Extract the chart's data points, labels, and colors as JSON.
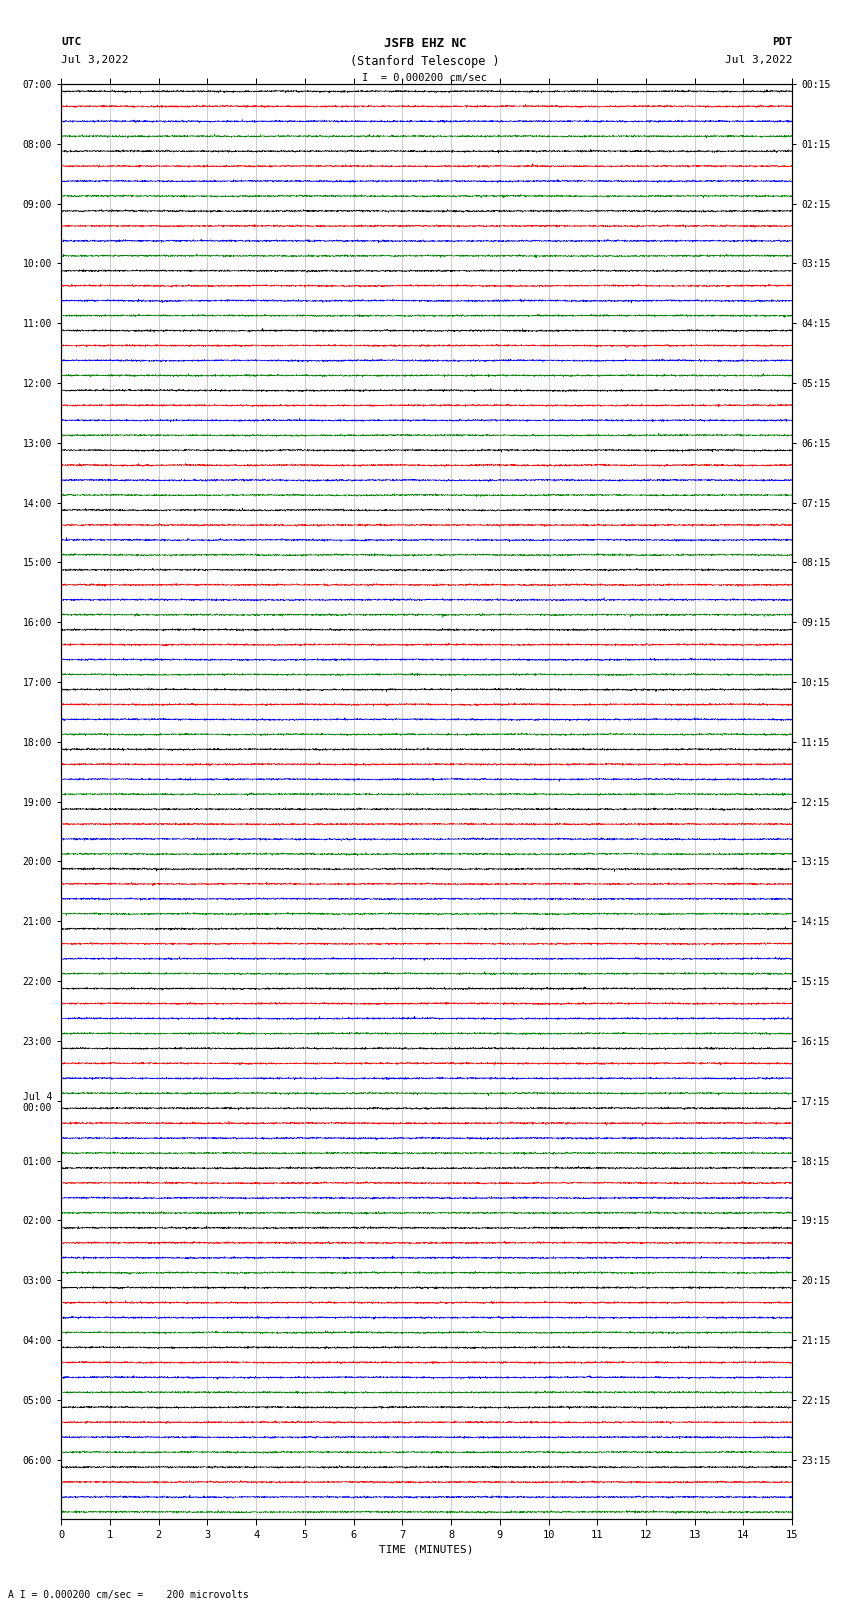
{
  "title_line1": "JSFB EHZ NC",
  "title_line2": "(Stanford Telescope )",
  "title_line3": "I  = 0.000200 cm/sec",
  "left_label_line1": "UTC",
  "left_label_line2": "Jul 3,2022",
  "right_label_line1": "PDT",
  "right_label_line2": "Jul 3,2022",
  "xlabel": "TIME (MINUTES)",
  "bottom_label": "A I = 0.000200 cm/sec =    200 microvolts",
  "utc_times": [
    "07:00",
    "08:00",
    "09:00",
    "10:00",
    "11:00",
    "12:00",
    "13:00",
    "14:00",
    "15:00",
    "16:00",
    "17:00",
    "18:00",
    "19:00",
    "20:00",
    "21:00",
    "22:00",
    "23:00",
    "Jul 4\n00:00",
    "01:00",
    "02:00",
    "03:00",
    "04:00",
    "05:00",
    "06:00"
  ],
  "pdt_times": [
    "00:15",
    "01:15",
    "02:15",
    "03:15",
    "04:15",
    "05:15",
    "06:15",
    "07:15",
    "08:15",
    "09:15",
    "10:15",
    "11:15",
    "12:15",
    "13:15",
    "14:15",
    "15:15",
    "16:15",
    "17:15",
    "18:15",
    "19:15",
    "20:15",
    "21:15",
    "22:15",
    "23:15"
  ],
  "trace_colors": [
    "black",
    "red",
    "blue",
    "green"
  ],
  "n_hours": 24,
  "traces_per_hour": 4,
  "xmin": 0,
  "xmax": 15,
  "background_color": "white",
  "grid_color": "#999999",
  "noise_amplitude": 0.028,
  "spike_prob": 0.0015,
  "spike_amplitude": 0.12,
  "linewidth": 0.4,
  "n_points": 3000
}
